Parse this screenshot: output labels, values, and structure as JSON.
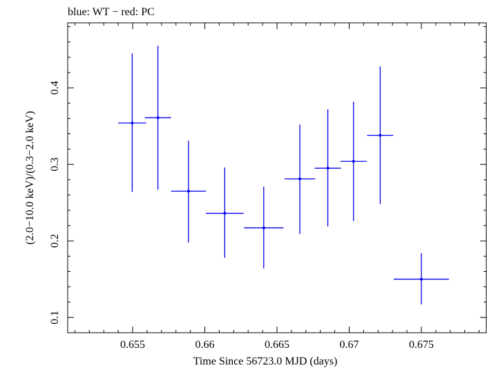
{
  "chart_data": {
    "type": "scatter",
    "title": "blue: WT − red: PC",
    "xlabel": "Time Since 56723.0 MJD (days)",
    "ylabel": "(2.0−10.0 keV)/(0.3−2.0 keV)",
    "xlim": [
      0.6505,
      0.6795
    ],
    "ylim": [
      0.08,
      0.485
    ],
    "x_ticks": [
      0.655,
      0.66,
      0.665,
      0.67,
      0.675
    ],
    "x_tick_labels": [
      "0.655",
      "0.66",
      "0.665",
      "0.67",
      "0.675"
    ],
    "y_ticks": [
      0.1,
      0.2,
      0.3,
      0.4
    ],
    "y_tick_labels": [
      "0.1",
      "0.2",
      "0.3",
      "0.4"
    ],
    "grid": false,
    "series": [
      {
        "color": "#0000ee",
        "points": [
          {
            "x": 0.65497,
            "y": 0.354,
            "xerr": 0.00097,
            "ylo": 0.264,
            "yhi": 0.445
          },
          {
            "x": 0.65675,
            "y": 0.361,
            "xerr": 0.00091,
            "ylo": 0.267,
            "yhi": 0.455
          },
          {
            "x": 0.65887,
            "y": 0.265,
            "xerr": 0.00121,
            "ylo": 0.198,
            "yhi": 0.331
          },
          {
            "x": 0.66138,
            "y": 0.236,
            "xerr": 0.00131,
            "ylo": 0.178,
            "yhi": 0.296
          },
          {
            "x": 0.66408,
            "y": 0.217,
            "xerr": 0.00137,
            "ylo": 0.164,
            "yhi": 0.271
          },
          {
            "x": 0.66658,
            "y": 0.281,
            "xerr": 0.00106,
            "ylo": 0.209,
            "yhi": 0.352
          },
          {
            "x": 0.66852,
            "y": 0.295,
            "xerr": 0.00091,
            "ylo": 0.219,
            "yhi": 0.372
          },
          {
            "x": 0.6703,
            "y": 0.304,
            "xerr": 0.00091,
            "ylo": 0.226,
            "yhi": 0.382
          },
          {
            "x": 0.67215,
            "y": 0.338,
            "xerr": 0.00091,
            "ylo": 0.248,
            "yhi": 0.428
          },
          {
            "x": 0.675,
            "y": 0.15,
            "xerr": 0.00191,
            "ylo": 0.117,
            "yhi": 0.184
          }
        ]
      }
    ]
  }
}
